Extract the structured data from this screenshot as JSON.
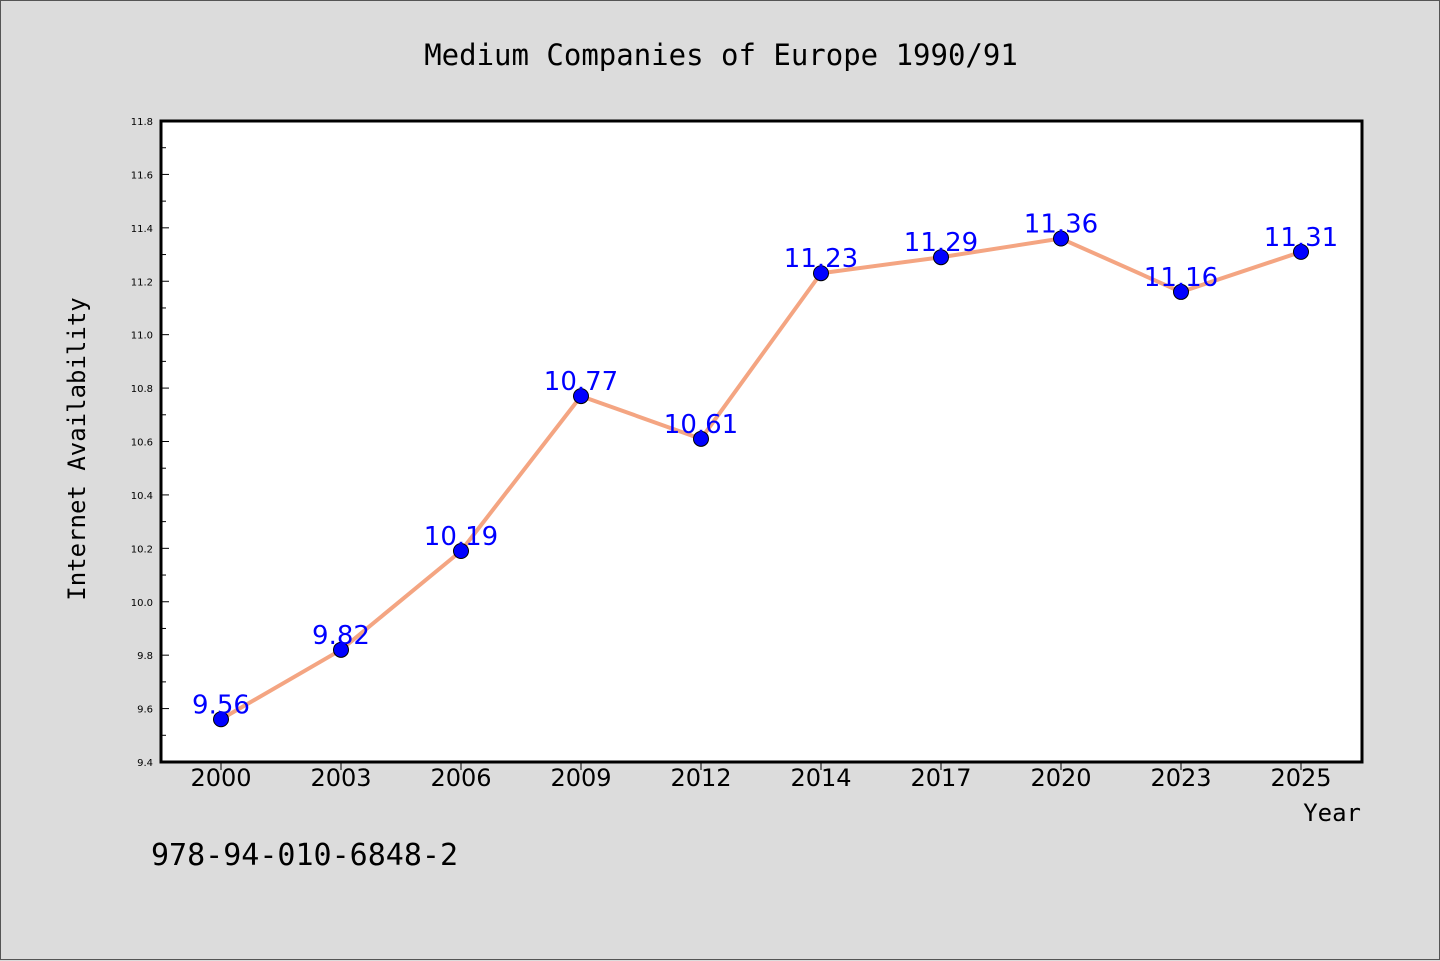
{
  "chart_data": {
    "type": "line",
    "title": "Medium Companies of Europe 1990/91",
    "xlabel": "Year",
    "ylabel": "Internet Availability",
    "categories": [
      "2000",
      "2003",
      "2006",
      "2009",
      "2012",
      "2014",
      "2017",
      "2020",
      "2023",
      "2025"
    ],
    "series": [
      {
        "values": [
          9.56,
          9.82,
          10.19,
          10.77,
          10.61,
          11.23,
          11.29,
          11.36,
          11.16,
          11.31
        ],
        "line_color": "#f4a582",
        "marker_color": "#0000ff",
        "label_color": "#0000ff"
      }
    ],
    "ylim": [
      9.4,
      11.8
    ],
    "yticks": [
      "9.4",
      "9.6",
      "9.8",
      "10.0",
      "10.2",
      "10.4",
      "10.6",
      "10.8",
      "11.0",
      "11.2",
      "11.4",
      "11.6",
      "11.8"
    ],
    "grid": false,
    "legend": "none"
  },
  "footnote": "978-94-010-6848-2"
}
